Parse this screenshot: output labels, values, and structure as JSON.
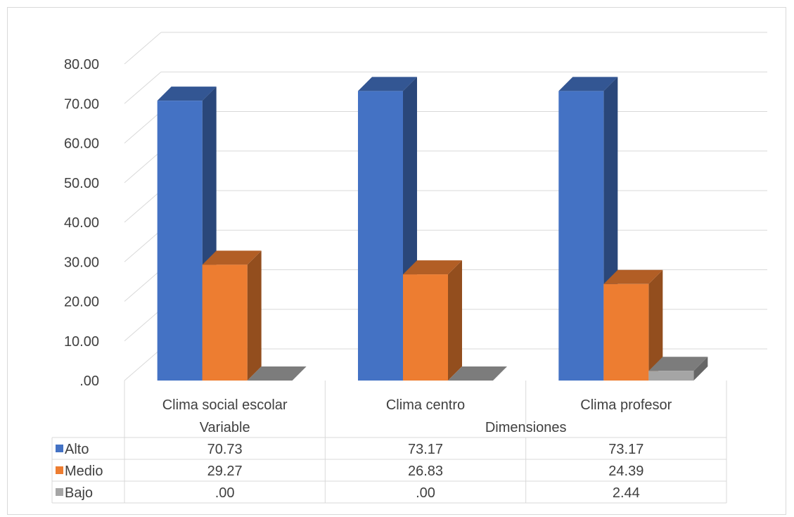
{
  "chart_data": {
    "type": "bar",
    "subtype": "3d-clustered-column-with-data-table",
    "categories": [
      "Clima social escolar",
      "Clima centro",
      "Clima profesor"
    ],
    "groups": [
      {
        "label": "Variable",
        "categories": [
          "Clima social escolar"
        ]
      },
      {
        "label": "Dimensiones",
        "categories": [
          "Clima centro",
          "Clima profesor"
        ]
      }
    ],
    "series": [
      {
        "name": "Alto",
        "values": [
          70.73,
          73.17,
          73.17
        ],
        "color": "#4472C4",
        "labels": [
          "70.73",
          "73.17",
          "73.17"
        ]
      },
      {
        "name": "Medio",
        "values": [
          29.27,
          26.83,
          24.39
        ],
        "color": "#ED7D31",
        "labels": [
          "29.27",
          "26.83",
          "24.39"
        ]
      },
      {
        "name": "Bajo",
        "values": [
          0.0,
          0.0,
          2.44
        ],
        "color": "#A5A5A5",
        "labels": [
          ".00",
          ".00",
          "2.44"
        ]
      }
    ],
    "yticks": [
      ".00",
      "10.00",
      "20.00",
      "30.00",
      "40.00",
      "50.00",
      "60.00",
      "70.00",
      "80.00"
    ],
    "ylim": [
      0,
      80
    ],
    "grid": true,
    "legend": "data-table"
  }
}
